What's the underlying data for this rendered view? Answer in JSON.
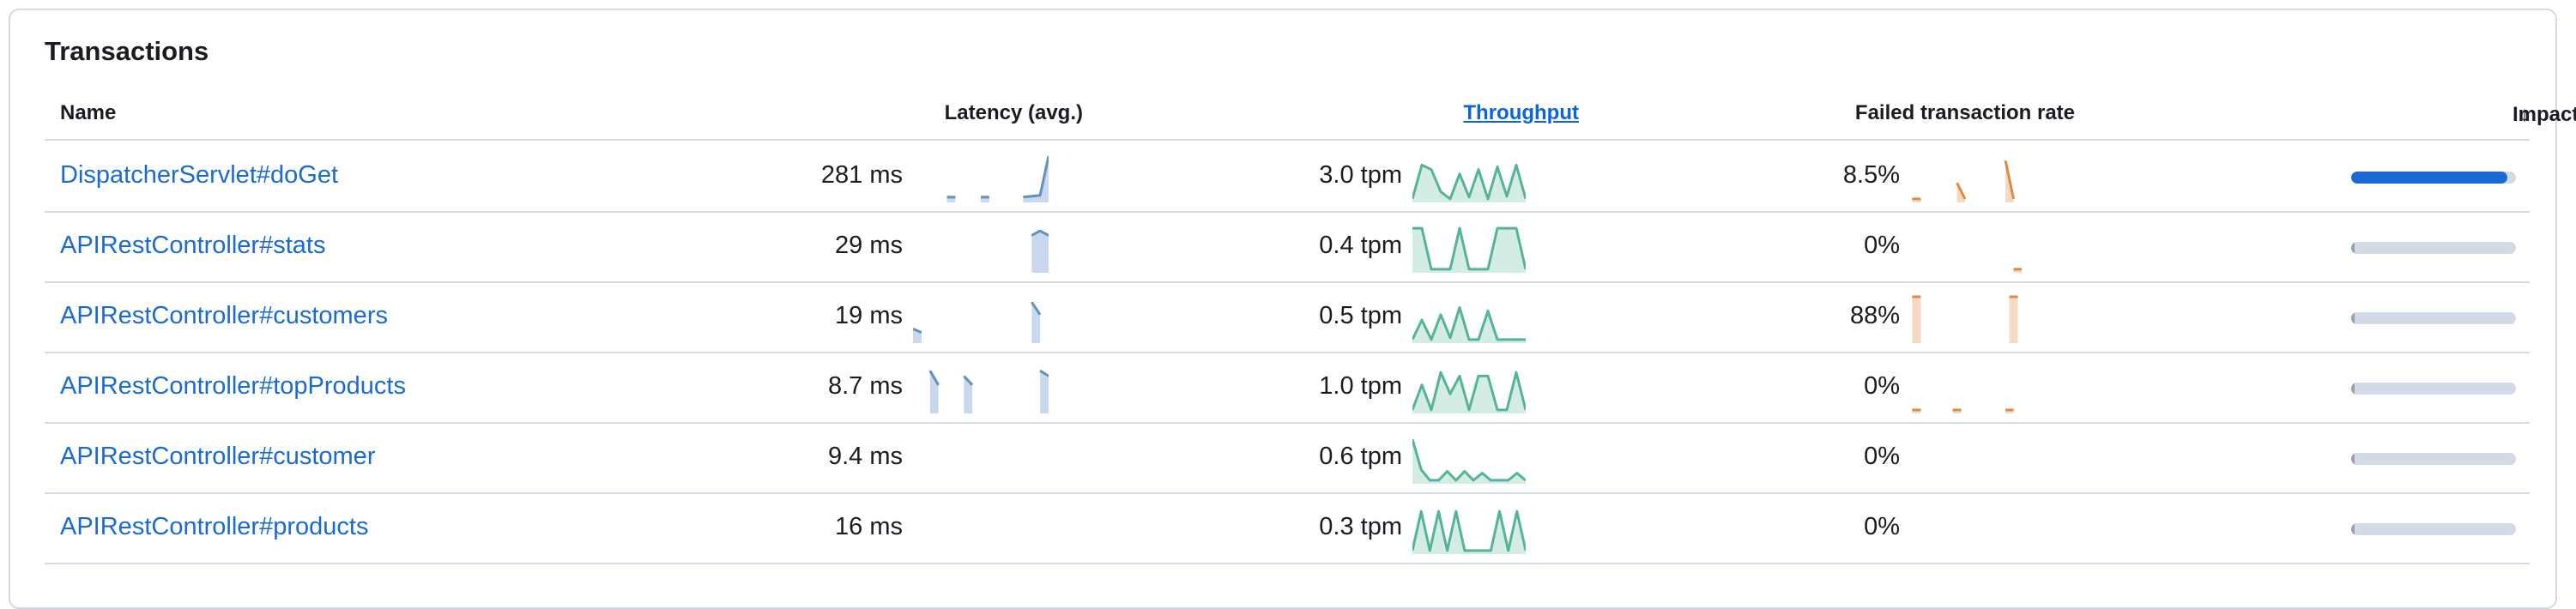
{
  "panel": {
    "title": "Transactions"
  },
  "columns": {
    "name": "Name",
    "latency": "Latency (avg.)",
    "throughput": "Throughput",
    "failed": "Failed transaction rate",
    "impact": "Impact",
    "impact_sort_icon": "arrow-down-icon"
  },
  "colors": {
    "link": "#1a6ad6",
    "latency_line": "#6092c0",
    "latency_fill": "#c9d8ec",
    "throughput_line": "#54b399",
    "throughput_fill": "#d3ece4",
    "failed_line": "#da8b45",
    "failed_fill": "#f6d9c3",
    "impact_fill": "#1a6ad6",
    "impact_track": "#d3dae6"
  },
  "rows": [
    {
      "name": "DispatcherServlet#doGet",
      "latency": "281 ms",
      "throughput": "3.0 tpm",
      "failed": "8.5%",
      "impact": 0.95,
      "latency_series": [
        null,
        null,
        null,
        null,
        4,
        4,
        null,
        null,
        4,
        4,
        null,
        null,
        null,
        4,
        5,
        6,
        50
      ],
      "throughput_series": [
        2,
        40,
        35,
        10,
        2,
        30,
        4,
        35,
        2,
        38,
        5,
        40,
        2
      ],
      "failed_series": [
        null,
        2,
        null,
        null,
        null,
        null,
        20,
        2,
        null,
        null,
        null,
        null,
        45,
        2,
        null
      ]
    },
    {
      "name": "APIRestController#stats",
      "latency": "29 ms",
      "throughput": "0.4 tpm",
      "failed": "0%",
      "impact": 0.02,
      "latency_series": [
        null,
        null,
        null,
        null,
        null,
        null,
        null,
        null,
        null,
        null,
        null,
        null,
        null,
        null,
        40,
        45,
        40
      ],
      "throughput_series": [
        48,
        48,
        2,
        2,
        2,
        48,
        2,
        2,
        2,
        48,
        48,
        48,
        2
      ],
      "failed_series": [
        null,
        null,
        null,
        null,
        null,
        null,
        null,
        null,
        null,
        null,
        null,
        null,
        null,
        2,
        2
      ]
    },
    {
      "name": "APIRestController#customers",
      "latency": "19 ms",
      "throughput": "0.5 tpm",
      "failed": "88%",
      "impact": 0.02,
      "latency_series": [
        14,
        10,
        null,
        null,
        null,
        null,
        null,
        null,
        null,
        null,
        null,
        null,
        null,
        null,
        44,
        30,
        null
      ],
      "throughput_series": [
        2,
        24,
        2,
        30,
        4,
        38,
        2,
        2,
        34,
        2,
        2,
        2,
        2
      ],
      "failed_series": [
        null,
        50,
        null,
        null,
        null,
        null,
        null,
        null,
        null,
        null,
        null,
        null,
        null,
        50,
        null
      ]
    },
    {
      "name": "APIRestController#topProducts",
      "latency": "8.7 ms",
      "throughput": "1.0 tpm",
      "failed": "0%",
      "impact": 0.02,
      "latency_series": [
        null,
        null,
        46,
        30,
        null,
        null,
        40,
        30,
        null,
        null,
        null,
        null,
        null,
        null,
        null,
        46,
        40
      ],
      "throughput_series": [
        2,
        30,
        2,
        44,
        20,
        40,
        2,
        40,
        40,
        2,
        2,
        44,
        2
      ],
      "failed_series": [
        null,
        2,
        null,
        null,
        null,
        null,
        2,
        null,
        null,
        null,
        null,
        null,
        2,
        2,
        null
      ]
    },
    {
      "name": "APIRestController#customer",
      "latency": "9.4 ms",
      "throughput": "0.6 tpm",
      "failed": "0%",
      "impact": 0.02,
      "latency_series": [],
      "throughput_series": [
        48,
        14,
        2,
        2,
        12,
        2,
        12,
        2,
        10,
        2,
        2,
        2,
        10,
        2
      ],
      "failed_series": []
    },
    {
      "name": "APIRestController#products",
      "latency": "16 ms",
      "throughput": "0.3 tpm",
      "failed": "0%",
      "impact": 0.02,
      "latency_series": [],
      "throughput_series": [
        2,
        46,
        2,
        46,
        2,
        46,
        2,
        2,
        2,
        2,
        46,
        2,
        46,
        2
      ],
      "failed_series": []
    }
  ]
}
